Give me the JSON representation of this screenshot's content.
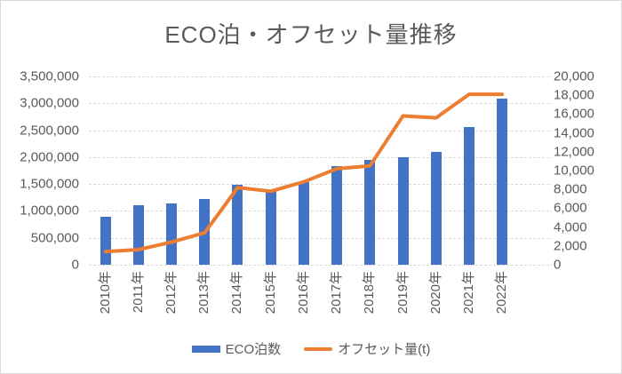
{
  "title": "ECO泊・オフセット量推移",
  "colors": {
    "bar": "#4472C4",
    "line": "#ED7D31",
    "text": "#595959",
    "grid": "#D9D9D9",
    "border": "#D9D9D9",
    "background": "#FFFFFF"
  },
  "chart_data": {
    "type": "combo-bar-line",
    "title": "ECO泊・オフセット量推移",
    "categories": [
      "2010年",
      "2011年",
      "2012年",
      "2013年",
      "2014年",
      "2015年",
      "2016年",
      "2017年",
      "2018年",
      "2019年",
      "2020年",
      "2021年",
      "2022年"
    ],
    "series": [
      {
        "name": "ECO泊数",
        "type": "bar",
        "axis": "left",
        "color": "#4472C4",
        "values": [
          900000,
          1100000,
          1140000,
          1230000,
          1490000,
          1370000,
          1540000,
          1830000,
          1950000,
          2000000,
          2100000,
          2560000,
          3080000
        ]
      },
      {
        "name": "オフセット量(t)",
        "type": "line",
        "axis": "right",
        "color": "#ED7D31",
        "values": [
          1400,
          1600,
          2400,
          3400,
          8200,
          7800,
          8800,
          10200,
          10500,
          15800,
          15600,
          18100,
          18100
        ]
      }
    ],
    "left_axis": {
      "min": 0,
      "max": 3500000,
      "step": 500000,
      "tick_labels_top_to_bottom": [
        "3,500,000",
        "3,000,000",
        "2,500,000",
        "2,000,000",
        "1,500,000",
        "1,000,000",
        "500,000",
        "0"
      ]
    },
    "right_axis": {
      "min": 0,
      "max": 20000,
      "step": 2000,
      "tick_labels_top_to_bottom": [
        "20,000",
        "18,000",
        "16,000",
        "14,000",
        "12,000",
        "10,000",
        "8,000",
        "6,000",
        "4,000",
        "2,000",
        "0"
      ]
    },
    "grid": true,
    "legend_position": "bottom"
  },
  "legend": {
    "items": [
      {
        "label": "ECO泊数",
        "swatch": "bar"
      },
      {
        "label": "オフセット量(t)",
        "swatch": "line"
      }
    ]
  }
}
